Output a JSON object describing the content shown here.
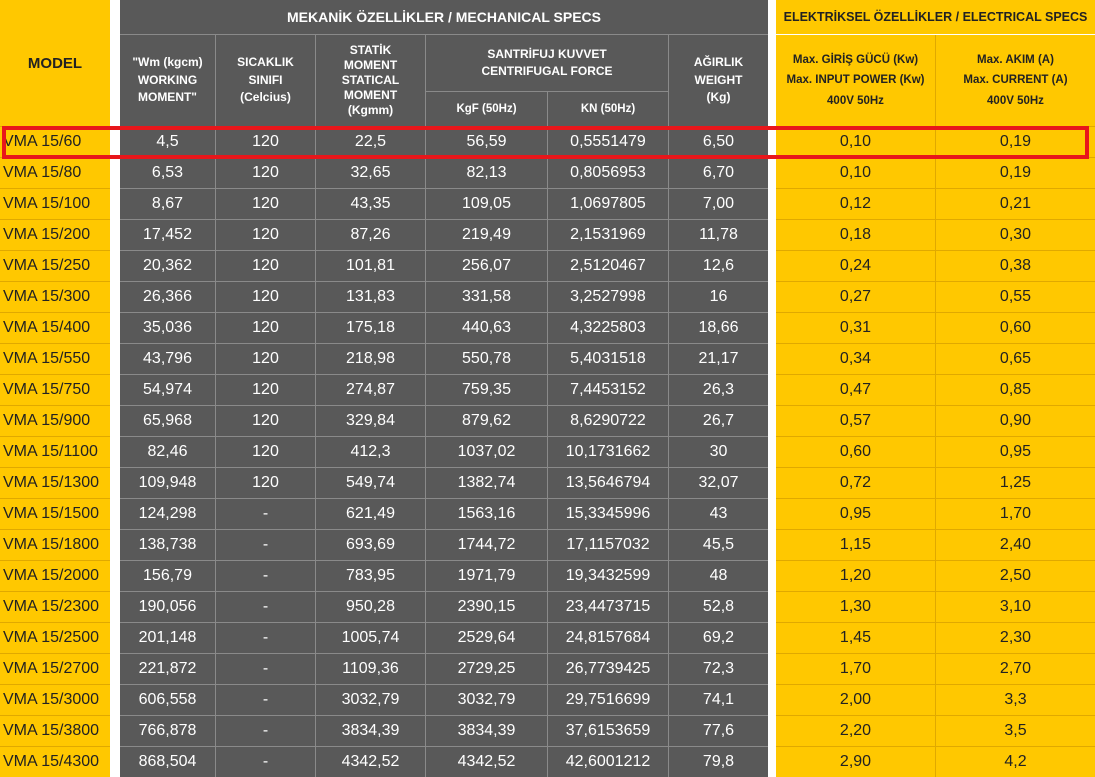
{
  "header": {
    "model_label": "MODEL",
    "mechanical_title": "MEKANİK ÖZELLİKLER / MECHANICAL SPECS",
    "electrical_title": "ELEKTRİKSEL ÖZELLİKLER / ELECTRICAL SPECS",
    "working_moment": "\"Wm (kgcm)\nWORKING\nMOMENT\"",
    "heat_class": "SICAKLIK\nSINIFI\n(Celcius)",
    "static_moment": "STATİK\nMOMENT\nSTATICAL\nMOMENT\n(Kgmm)",
    "centrifugal_force": "SANTRİFUJ KUVVET\nCENTRIFUGAL FORCE",
    "kgf_label": "KgF (50Hz)",
    "kn_label": "KN (50Hz)",
    "weight": "AĞIRLIK\nWEIGHT\n(Kg)",
    "input_power": "Max. GİRİŞ GÜCÜ  (Kw)\nMax. INPUT POWER (Kw)\n400V 50Hz",
    "current": "Max. AKIM (A)\nMax. CURRENT (A)\n400V 50Hz"
  },
  "highlight_color": "#e8161b",
  "accent_yellow": "#ffc800",
  "table_gray": "#595959",
  "rows": [
    {
      "model": "VMA 15/60",
      "wm": "4,5",
      "heat": "120",
      "static": "22,5",
      "kgf": "56,59",
      "kn": "0,5551479",
      "weight": "6,50",
      "power": "0,10",
      "current": "0,19"
    },
    {
      "model": "VMA 15/80",
      "wm": "6,53",
      "heat": "120",
      "static": "32,65",
      "kgf": "82,13",
      "kn": "0,8056953",
      "weight": "6,70",
      "power": "0,10",
      "current": "0,19"
    },
    {
      "model": "VMA 15/100",
      "wm": "8,67",
      "heat": "120",
      "static": "43,35",
      "kgf": "109,05",
      "kn": "1,0697805",
      "weight": "7,00",
      "power": "0,12",
      "current": "0,21"
    },
    {
      "model": "VMA 15/200",
      "wm": "17,452",
      "heat": "120",
      "static": "87,26",
      "kgf": "219,49",
      "kn": "2,1531969",
      "weight": "11,78",
      "power": "0,18",
      "current": "0,30"
    },
    {
      "model": "VMA 15/250",
      "wm": "20,362",
      "heat": "120",
      "static": "101,81",
      "kgf": "256,07",
      "kn": "2,5120467",
      "weight": "12,6",
      "power": "0,24",
      "current": "0,38"
    },
    {
      "model": "VMA 15/300",
      "wm": "26,366",
      "heat": "120",
      "static": "131,83",
      "kgf": "331,58",
      "kn": "3,2527998",
      "weight": "16",
      "power": "0,27",
      "current": "0,55"
    },
    {
      "model": "VMA 15/400",
      "wm": "35,036",
      "heat": "120",
      "static": "175,18",
      "kgf": "440,63",
      "kn": "4,3225803",
      "weight": "18,66",
      "power": "0,31",
      "current": "0,60"
    },
    {
      "model": "VMA 15/550",
      "wm": "43,796",
      "heat": "120",
      "static": "218,98",
      "kgf": "550,78",
      "kn": "5,4031518",
      "weight": "21,17",
      "power": "0,34",
      "current": "0,65"
    },
    {
      "model": "VMA 15/750",
      "wm": "54,974",
      "heat": "120",
      "static": "274,87",
      "kgf": "759,35",
      "kn": "7,4453152",
      "weight": "26,3",
      "power": "0,47",
      "current": "0,85"
    },
    {
      "model": "VMA 15/900",
      "wm": "65,968",
      "heat": "120",
      "static": "329,84",
      "kgf": "879,62",
      "kn": "8,6290722",
      "weight": "26,7",
      "power": "0,57",
      "current": "0,90"
    },
    {
      "model": "VMA 15/1100",
      "wm": "82,46",
      "heat": "120",
      "static": "412,3",
      "kgf": "1037,02",
      "kn": "10,1731662",
      "weight": "30",
      "power": "0,60",
      "current": "0,95"
    },
    {
      "model": "VMA 15/1300",
      "wm": "109,948",
      "heat": "120",
      "static": "549,74",
      "kgf": "1382,74",
      "kn": "13,5646794",
      "weight": "32,07",
      "power": "0,72",
      "current": "1,25"
    },
    {
      "model": "VMA 15/1500",
      "wm": "124,298",
      "heat": "-",
      "static": "621,49",
      "kgf": "1563,16",
      "kn": "15,3345996",
      "weight": "43",
      "power": "0,95",
      "current": "1,70"
    },
    {
      "model": "VMA 15/1800",
      "wm": "138,738",
      "heat": "-",
      "static": "693,69",
      "kgf": "1744,72",
      "kn": "17,1157032",
      "weight": "45,5",
      "power": "1,15",
      "current": "2,40"
    },
    {
      "model": "VMA 15/2000",
      "wm": "156,79",
      "heat": "-",
      "static": "783,95",
      "kgf": "1971,79",
      "kn": "19,3432599",
      "weight": "48",
      "power": "1,20",
      "current": "2,50"
    },
    {
      "model": "VMA 15/2300",
      "wm": "190,056",
      "heat": "-",
      "static": "950,28",
      "kgf": "2390,15",
      "kn": "23,4473715",
      "weight": "52,8",
      "power": "1,30",
      "current": "3,10"
    },
    {
      "model": "VMA 15/2500",
      "wm": "201,148",
      "heat": "-",
      "static": "1005,74",
      "kgf": "2529,64",
      "kn": "24,8157684",
      "weight": "69,2",
      "power": "1,45",
      "current": "2,30"
    },
    {
      "model": "VMA 15/2700",
      "wm": "221,872",
      "heat": "-",
      "static": "1109,36",
      "kgf": "2729,25",
      "kn": "26,7739425",
      "weight": "72,3",
      "power": "1,70",
      "current": "2,70"
    },
    {
      "model": "VMA 15/3000",
      "wm": "606,558",
      "heat": "-",
      "static": "3032,79",
      "kgf": "3032,79",
      "kn": "29,7516699",
      "weight": "74,1",
      "power": "2,00",
      "current": "3,3"
    },
    {
      "model": "VMA 15/3800",
      "wm": "766,878",
      "heat": "-",
      "static": "3834,39",
      "kgf": "3834,39",
      "kn": "37,6153659",
      "weight": "77,6",
      "power": "2,20",
      "current": "3,5"
    },
    {
      "model": "VMA 15/4300",
      "wm": "868,504",
      "heat": "-",
      "static": "4342,52",
      "kgf": "4342,52",
      "kn": "42,6001212",
      "weight": "79,8",
      "power": "2,90",
      "current": "4,2"
    }
  ]
}
